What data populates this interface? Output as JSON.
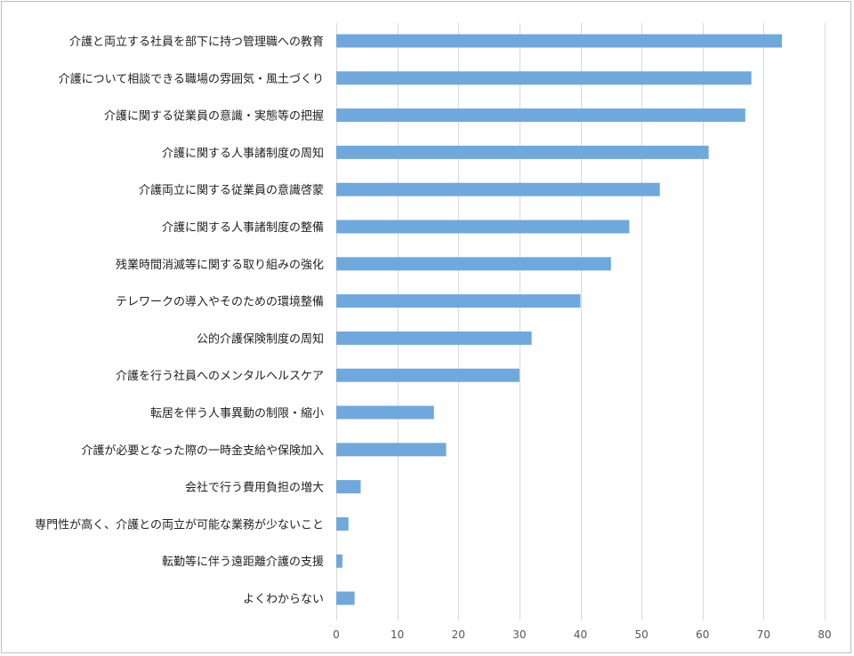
{
  "chart_data": {
    "type": "bar",
    "orientation": "horizontal",
    "title": "",
    "xlabel": "",
    "ylabel": "",
    "xlim": [
      0,
      80
    ],
    "ticks": [
      0,
      10,
      20,
      30,
      40,
      50,
      60,
      70,
      80
    ],
    "grid": true,
    "bar_color": "#6fa8dc",
    "categories": [
      "介護と両立する社員を部下に持つ管理職への教育",
      "介護について相談できる職場の雰囲気・風土づくり",
      "介護に関する従業員の意識・実態等の把握",
      "介護に関する人事諸制度の周知",
      "介護両立に関する従業員の意識啓蒙",
      "介護に関する人事諸制度の整備",
      "残業時間消滅等に関する取り組みの強化",
      "テレワークの導入やそのための環境整備",
      "公的介護保険制度の周知",
      "介護を行う社員へのメンタルヘルスケア",
      "転居を伴う人事異動の制限・縮小",
      "介護が必要となった際の一時金支給や保険加入",
      "会社で行う費用負担の増大",
      "専門性が高く、介護との両立が可能な業務が少ないこと",
      "転勤等に伴う遠距離介護の支援",
      "よくわからない"
    ],
    "values": [
      73,
      68,
      67,
      61,
      53,
      48,
      45,
      40,
      32,
      30,
      16,
      18,
      4,
      2,
      1,
      3
    ]
  }
}
